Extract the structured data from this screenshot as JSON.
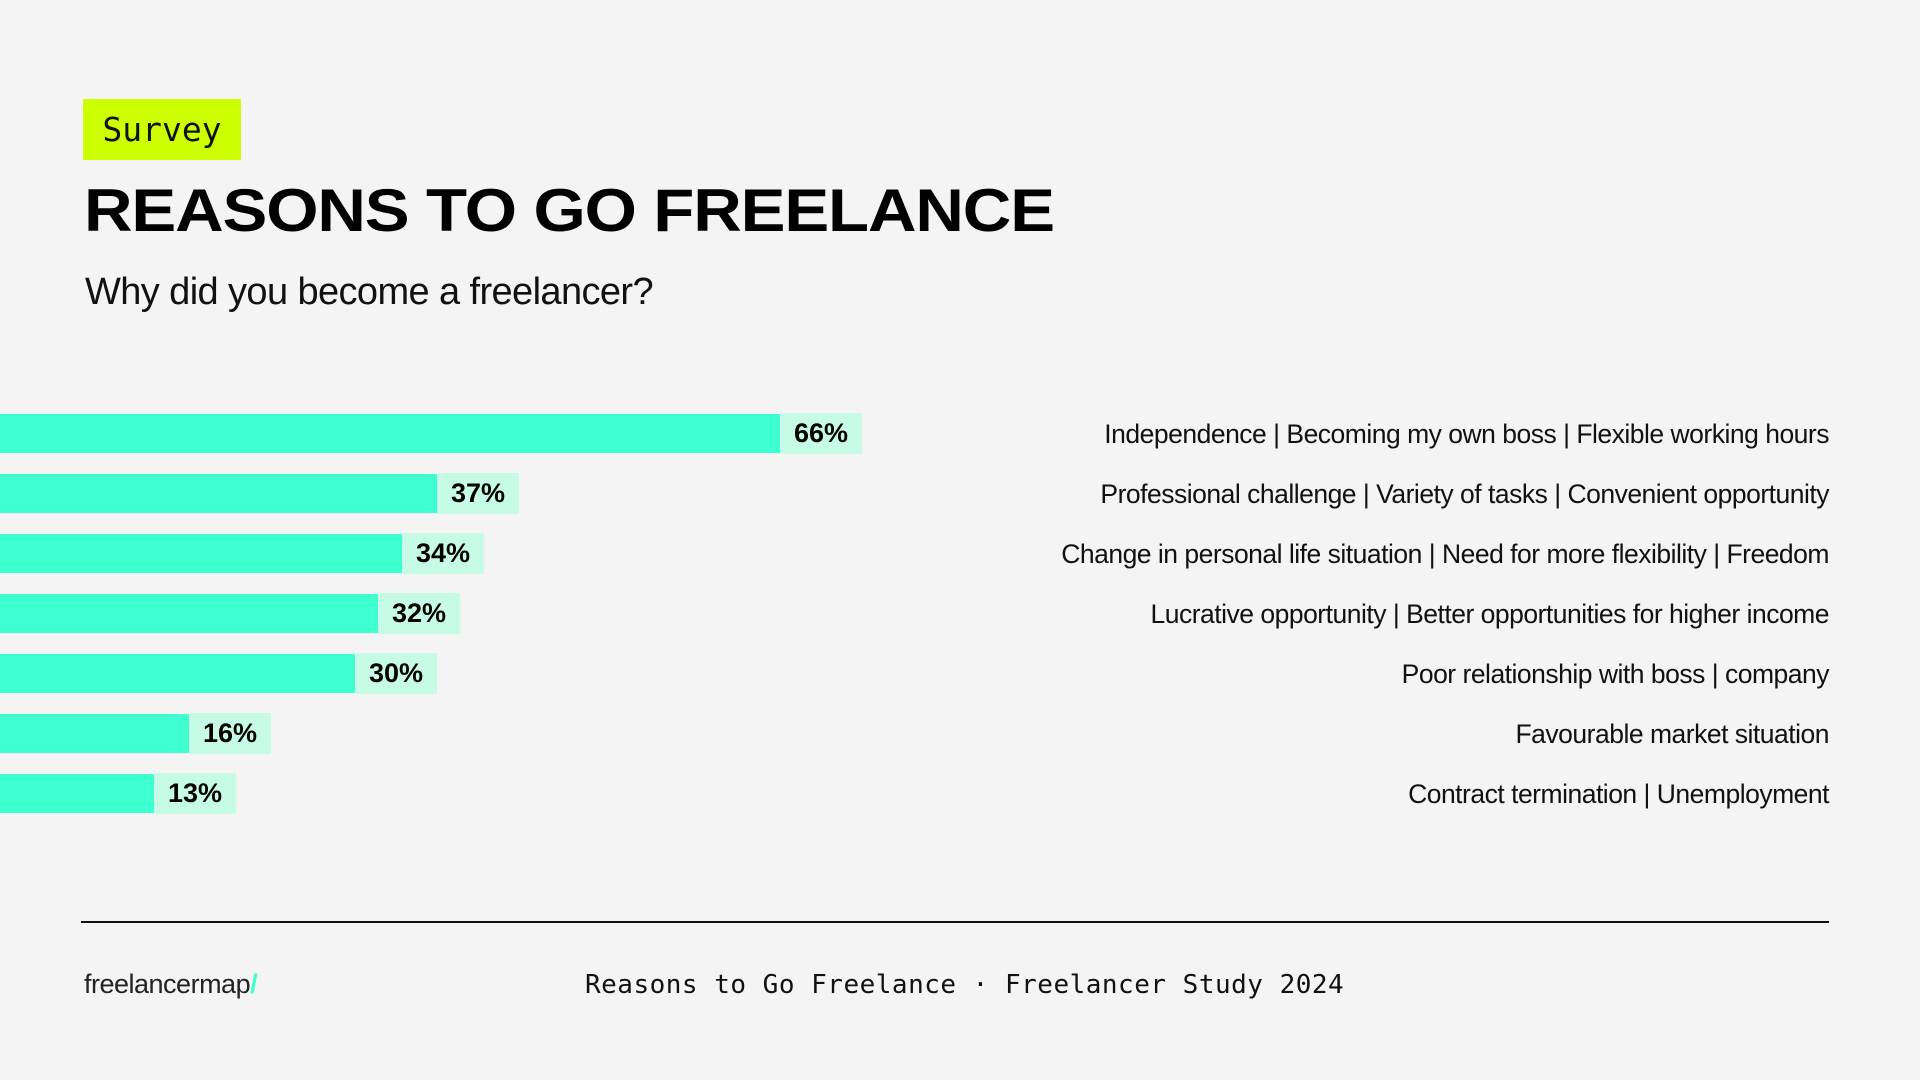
{
  "header": {
    "badge": "Survey",
    "title": "REASONS TO GO FREELANCE",
    "subtitle": "Why did you become a freelancer?"
  },
  "colors": {
    "background": "#f4f4f4",
    "badge": "#ccff00",
    "bar": "#3dffd0",
    "value_box": "#c6fbe6",
    "logo_slash": "#3dffd0"
  },
  "chart_data": {
    "type": "bar",
    "orientation": "horizontal",
    "title": "REASONS TO GO FREELANCE",
    "subtitle": "Why did you become a freelancer?",
    "categories": [
      "Independence | Becoming my own boss | Flexible working hours",
      "Professional challenge | Variety of tasks | Convenient opportunity",
      "Change in personal life situation | Need for more flexibility | Freedom",
      "Lucrative opportunity | Better opportunities for higher income",
      "Poor relationship with boss | company",
      "Favourable market situation",
      "Contract termination | Unemployment"
    ],
    "values": [
      66,
      37,
      34,
      32,
      30,
      16,
      13
    ],
    "value_labels": [
      "66%",
      "37%",
      "34%",
      "32%",
      "30%",
      "16%",
      "13%"
    ],
    "unit": "%",
    "xlabel": "",
    "ylabel": "",
    "grid": false,
    "legend": null
  },
  "footer": {
    "logo_text": "freelancermap",
    "logo_slash": "/",
    "caption": "Reasons to Go Freelance · Freelancer Study 2024"
  }
}
